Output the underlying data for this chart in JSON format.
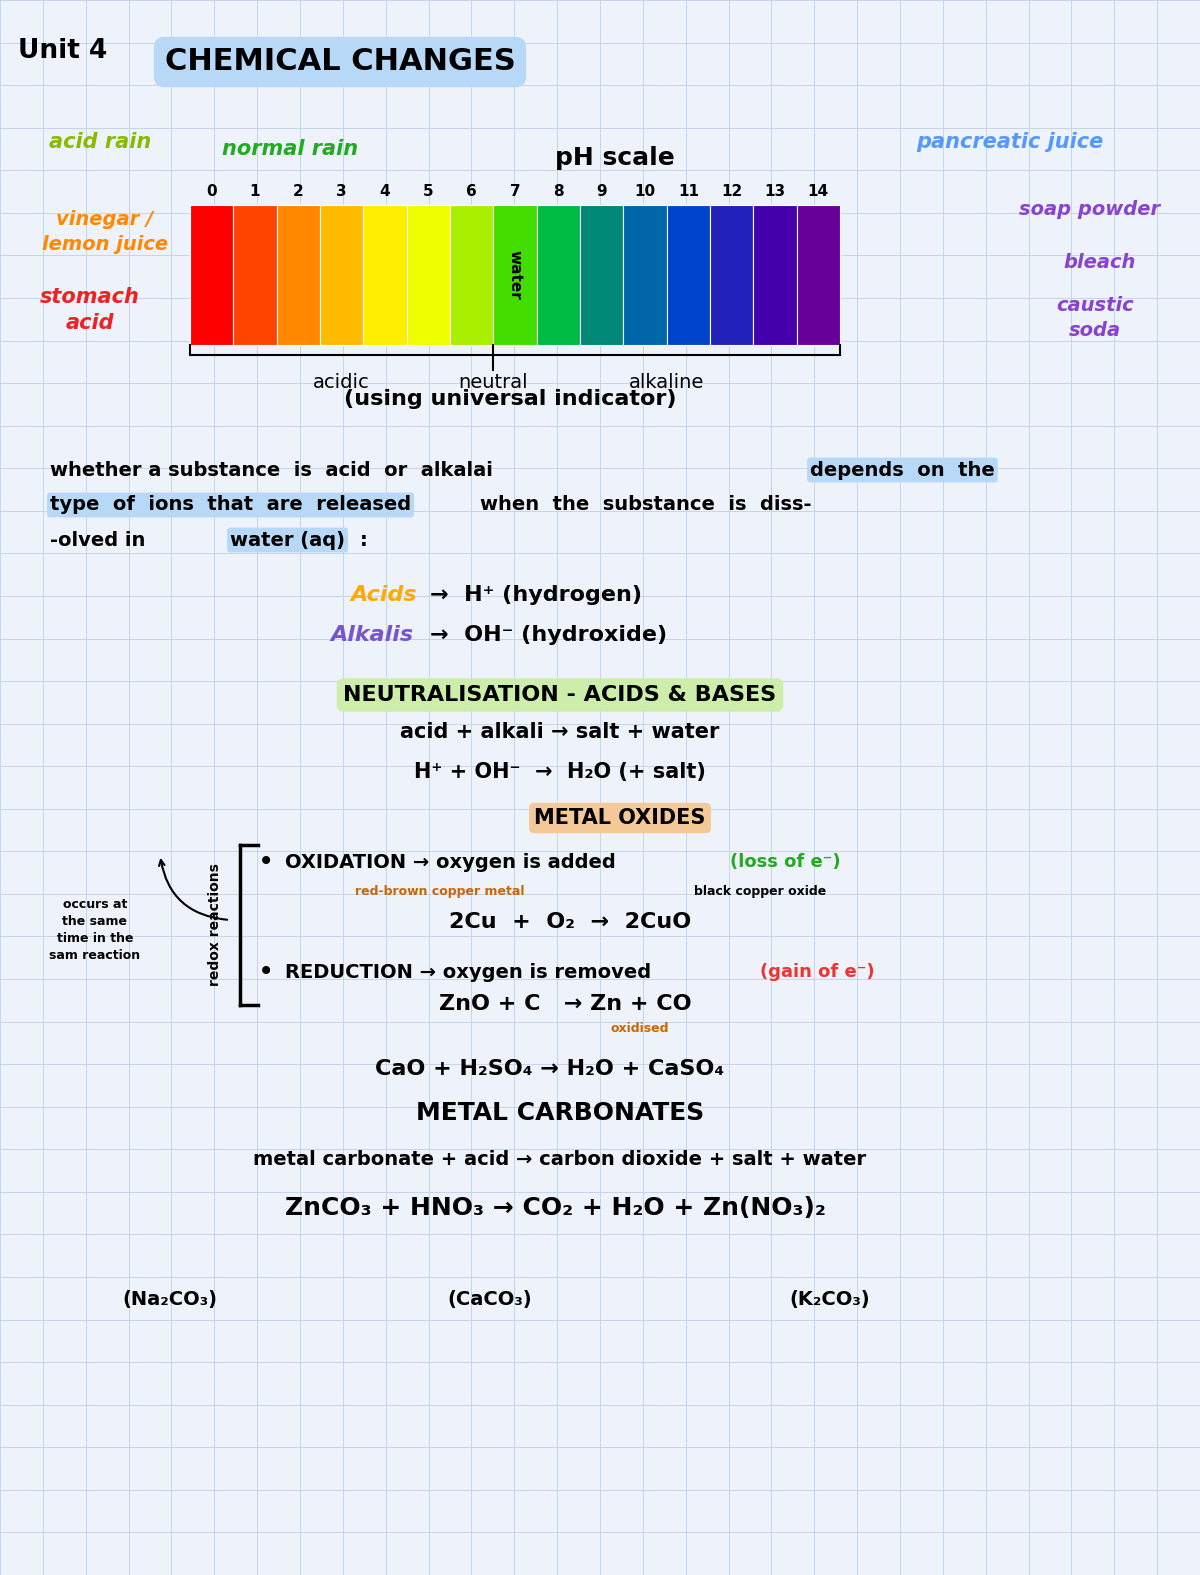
{
  "bg_color": "#eef2fa",
  "grid_color": "#c5d5e8",
  "title_unit": "Unit 4",
  "title_main": "CHEMICAL CHANGES",
  "title_bg": "#b8d8f8",
  "ph_colors": [
    "#ff0000",
    "#ff4400",
    "#ff8800",
    "#ffbb00",
    "#ffee00",
    "#eeff00",
    "#aaee00",
    "#44dd00",
    "#00bb44",
    "#008877",
    "#0066aa",
    "#0044cc",
    "#2222bb",
    "#4400aa",
    "#660099"
  ],
  "substance_text1": "whether a substance is acid or alkalai depends on the",
  "substance_text2_part1": "type of ions that are released",
  "substance_text2_part2": " when the substance is diss-",
  "substance_text3_part1": "-olved in ",
  "substance_text3_part2": "water (aq)",
  "substance_text3_part3": ":",
  "bottom_labels": [
    "(Na₂CO₃)",
    "(CaCO₃)",
    "(K₂CO₃)"
  ]
}
